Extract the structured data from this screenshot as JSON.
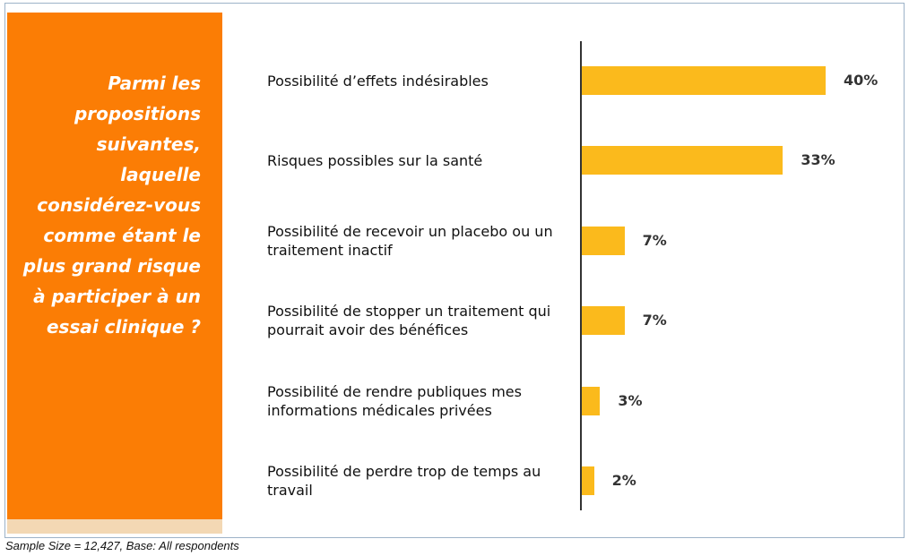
{
  "chart_data": {
    "type": "bar",
    "orientation": "horizontal",
    "question": "Parmi les propositions suivantes, laquelle considérez-vous comme étant le plus grand risque à participer à un essai clinique ?",
    "categories": [
      "Possibilité d’effets indésirables",
      "Risques possibles sur la santé",
      "Possibilité de recevoir un placebo ou un traitement inactif",
      "Possibilité de stopper un traitement qui pourrait avoir des bénéfices",
      "Possibilité de rendre  publiques mes informations médicales privées",
      "Possibilité de perdre trop de temps au travail"
    ],
    "values": [
      40,
      33,
      7,
      7,
      3,
      2
    ],
    "value_labels": [
      "40%",
      "33%",
      "7%",
      "7%",
      "3%",
      "2%"
    ],
    "color": "#fbba1c",
    "note": "Sample Size = 12,427, Base: All respondents"
  }
}
